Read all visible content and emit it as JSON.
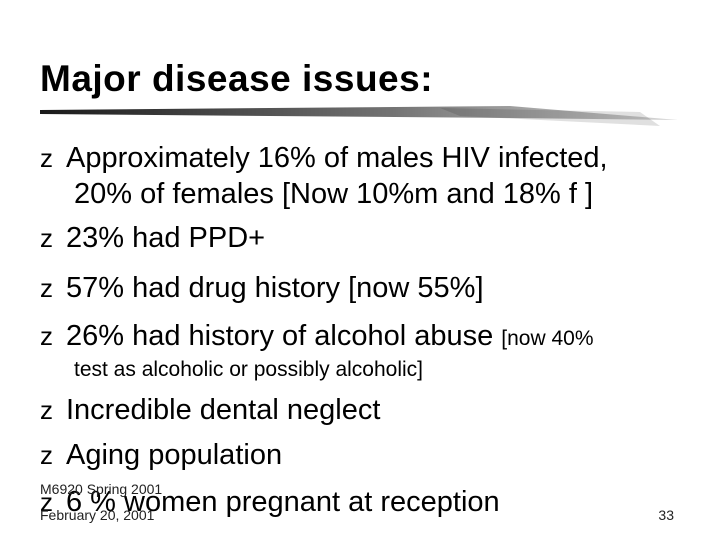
{
  "slide": {
    "title": "Major disease issues:",
    "bullet_glyph": "z",
    "bullets": [
      {
        "line1": "Approximately 16% of males HIV infected,",
        "line2": "20% of females [Now 10%m and 18% f ]"
      },
      {
        "text": "23% had PPD+"
      },
      {
        "text": "57% had drug history [now 55%]"
      },
      {
        "text": "26% had history of alcohol abuse",
        "small_tail": "[now 40%",
        "subline": "test as alcoholic or possibly alcoholic]"
      },
      {
        "text": "Incredible dental neglect"
      },
      {
        "text": "Aging population"
      },
      {
        "text": "6 % women pregnant at reception"
      }
    ],
    "footer": {
      "course": "M6920 Spring 2001",
      "date": "February 20, 2001",
      "page_number": "33"
    }
  }
}
